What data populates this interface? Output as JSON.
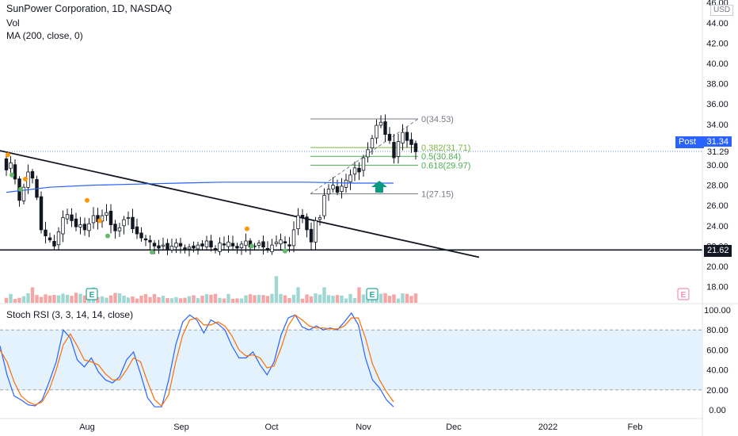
{
  "header": {
    "title": "SunPower Corporation, 1D, NASDAQ",
    "indicator_vol": "Vol",
    "indicator_ma": "MA (200, close, 0)",
    "currency": "USD",
    "post_label": "Post",
    "post_value": "31.34",
    "last_price": "31.29",
    "line_level": "21.62"
  },
  "colors": {
    "up": "#26a69a",
    "down": "#ef5350",
    "ma": "#2962ff",
    "stoch_k": "#2962ff",
    "stoch_d": "#ff6d00",
    "fib_gray": "#787b86",
    "fib_green": "#4caf50",
    "fib_olive": "#7cb342",
    "stoch_band": "#e3f2fd"
  },
  "chart_data": [
    {
      "type": "candlestick",
      "title": "SunPower Corporation, 1D, NASDAQ",
      "ylim": [
        16,
        46
      ],
      "yticks": [
        "18.00",
        "20.00",
        "22.00",
        "24.00",
        "26.00",
        "28.00",
        "30.00",
        "32.00",
        "34.00",
        "36.00",
        "38.00",
        "40.00",
        "42.00",
        "44.00",
        "46.00"
      ],
      "xticks": [
        "Aug",
        "Sep",
        "Oct",
        "Nov",
        "Dec",
        "2022",
        "Feb"
      ],
      "close": [
        29.5,
        30.2,
        28.6,
        26.5,
        27.8,
        29.3,
        28.7,
        26.8,
        23.6,
        23.0,
        22.6,
        22.0,
        23.4,
        24.8,
        25.1,
        24.5,
        23.9,
        24.1,
        23.6,
        24.2,
        25.0,
        24.4,
        25.0,
        25.3,
        24.1,
        23.5,
        23.8,
        24.6,
        24.8,
        23.7,
        23.2,
        22.8,
        22.6,
        22.4,
        22.0,
        21.8,
        22.1,
        21.6,
        22.0,
        22.3,
        22.0,
        21.7,
        21.9,
        21.8,
        22.1,
        22.0,
        22.5,
        21.9,
        21.6,
        22.3,
        22.1,
        22.4,
        22.0,
        21.8,
        22.2,
        22.5,
        21.9,
        22.0,
        22.3,
        21.9,
        21.6,
        22.1,
        22.4,
        22.6,
        22.3,
        22.0,
        23.6,
        25.0,
        24.8,
        23.6,
        22.4,
        24.5,
        24.8,
        27.0,
        27.6,
        28.0,
        27.3,
        27.9,
        28.5,
        29.0,
        29.7,
        29.3,
        30.7,
        31.5,
        32.6,
        33.9,
        34.2,
        33.0,
        32.4,
        30.7,
        32.3,
        33.2,
        32.4,
        32.0,
        31.3
      ],
      "volume_series": "Vol",
      "moving_average": {
        "name": "MA (200, close, 0)",
        "values": [
          27.3,
          27.8,
          28.0,
          28.1,
          28.2,
          28.3,
          28.3,
          28.3,
          28.2,
          28.2
        ]
      },
      "annotations": [
        {
          "type": "trendline",
          "from": [
            "Jul",
            31.4
          ],
          "to": [
            "Dec",
            20.9
          ]
        },
        {
          "type": "horizontal_line",
          "value": 21.62,
          "label": "21.62"
        },
        {
          "type": "fibonacci",
          "levels": [
            {
              "label": "0(34.53)",
              "value": 34.53
            },
            {
              "label": "0.382(31.71)",
              "value": 31.71
            },
            {
              "label": "0.5(30.84)",
              "value": 30.84
            },
            {
              "label": "0.618(29.97)",
              "value": 29.97
            },
            {
              "label": "1(27.15)",
              "value": 27.15
            }
          ]
        },
        {
          "type": "marker",
          "text": "E",
          "note": "earnings"
        }
      ],
      "price_labels": [
        "Post 31.34",
        "31.29",
        "21.62"
      ]
    },
    {
      "type": "line",
      "title": "Stoch RSI (3, 3, 14, 14, close)",
      "ylim": [
        0,
        100
      ],
      "yticks": [
        "0.00",
        "20.00",
        "40.00",
        "60.00",
        "80.00",
        "100.00"
      ],
      "bands": [
        20,
        80
      ],
      "series": [
        {
          "values": [
            64,
            35,
            14,
            10,
            5,
            4,
            10,
            28,
            48,
            80,
            72,
            50,
            43,
            52,
            38,
            30,
            27,
            33,
            50,
            58,
            36,
            12,
            3,
            3,
            30,
            65,
            88,
            95,
            90,
            77,
            90,
            86,
            80,
            64,
            52,
            52,
            58,
            45,
            35,
            48,
            75,
            92,
            95,
            83,
            80,
            84,
            80,
            82,
            80,
            88,
            97,
            85,
            52,
            30,
            22,
            10,
            3
          ]
        },
        {
          "values": [
            60,
            48,
            28,
            14,
            8,
            5,
            8,
            20,
            40,
            65,
            76,
            64,
            50,
            48,
            45,
            36,
            30,
            30,
            40,
            52,
            48,
            28,
            10,
            4,
            15,
            48,
            75,
            90,
            92,
            85,
            85,
            88,
            84,
            74,
            60,
            54,
            55,
            52,
            42,
            44,
            62,
            84,
            95,
            90,
            84,
            82,
            82,
            81,
            81,
            84,
            92,
            92,
            72,
            46,
            30,
            18,
            8
          ]
        }
      ]
    }
  ]
}
